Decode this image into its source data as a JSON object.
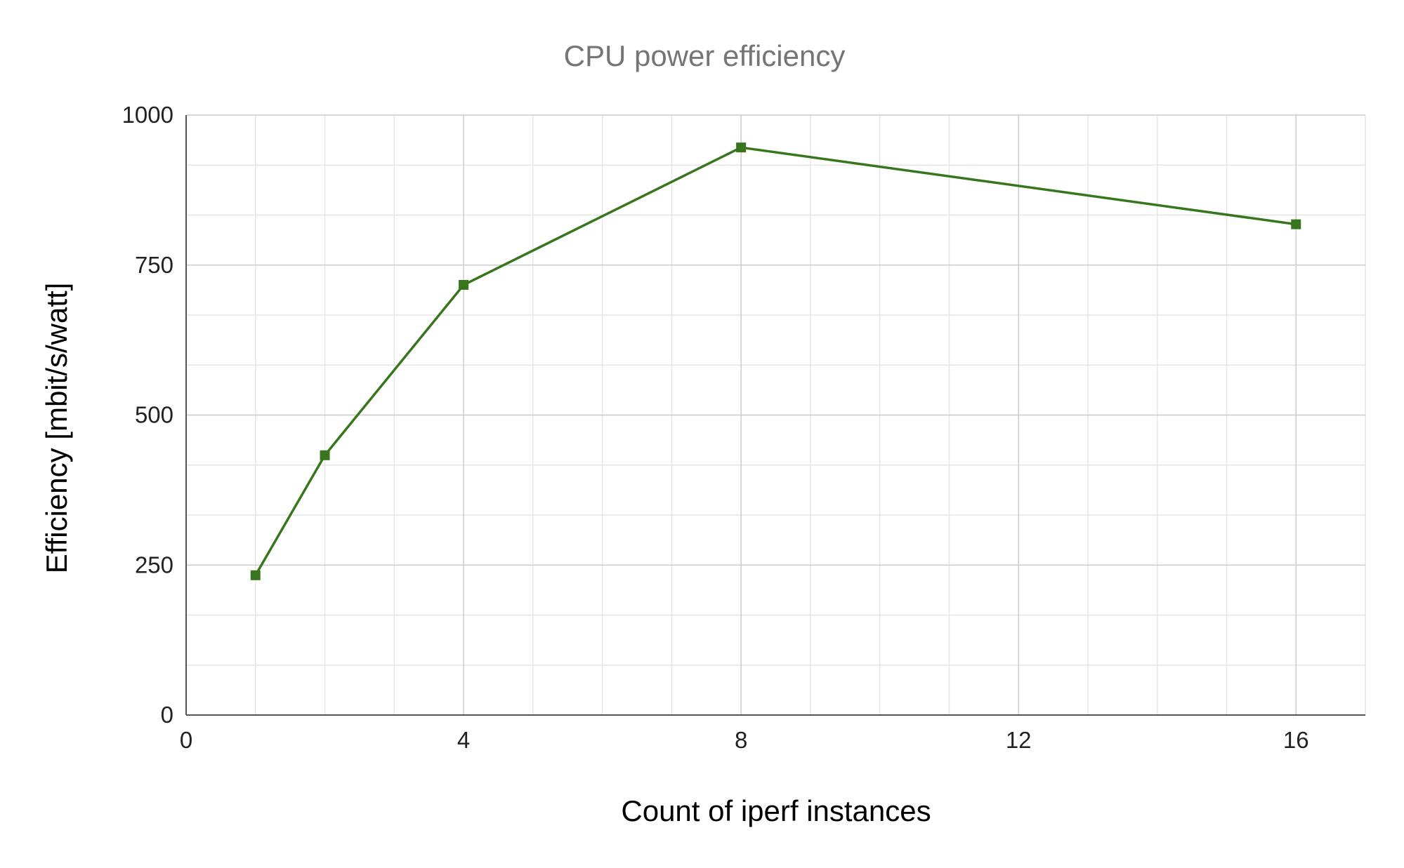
{
  "chart_data": {
    "type": "line",
    "title": "CPU power efficiency",
    "xlabel": "Count of iperf instances",
    "ylabel": "Efficiency [mbit/s/watt]",
    "xlim": [
      0,
      17
    ],
    "ylim": [
      0,
      1000
    ],
    "x_ticks": [
      0,
      4,
      8,
      12,
      16
    ],
    "x_tick_labels": [
      "0",
      "4",
      "8",
      "12",
      "16"
    ],
    "y_ticks": [
      0,
      250,
      500,
      750,
      1000
    ],
    "y_tick_labels": [
      "0",
      "250",
      "500",
      "750",
      "1000"
    ],
    "x_minor_step": 1,
    "y_minor_step": 83.333,
    "grid": true,
    "legend": "none",
    "series": [
      {
        "x": [
          1,
          2,
          4,
          8,
          16
        ],
        "values": [
          233,
          433,
          717,
          946,
          818
        ],
        "color": "#38761d",
        "marker": "square"
      }
    ]
  }
}
